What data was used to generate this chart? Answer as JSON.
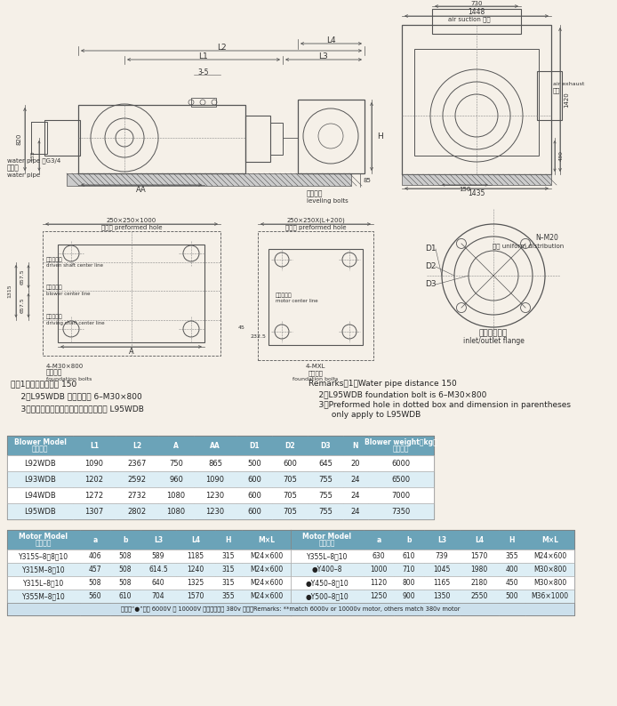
{
  "bg_color": "#f5f0e8",
  "line_color": "#555555",
  "table1_header_bg": "#6ba3b8",
  "table2_header_bg": "#6ba3b8",
  "table_header_text": "#ffffff",
  "notes_cn": [
    "注：1、输水管间距为 150",
    "    2、L95WDB 地脚螺栓为 6–M30×800",
    "    3、虚线框内预留孔及括号内尺寸仅用于 L95WDB"
  ],
  "notes_en": [
    "Remarks：1、Water pipe distance 150",
    "    2、L95WDB foundation bolt is 6–M30×800",
    "    3、Preformed hole in dotted box and dimension in parentheses",
    "         only apply to L95WDB"
  ],
  "blower_table_headers": [
    "风机型号\nBlower Model",
    "L1",
    "L2",
    "A",
    "AA",
    "D1",
    "D2",
    "D3",
    "N",
    "主机重量\nBlower weight（kg）"
  ],
  "blower_table_data": [
    [
      "L92WDB",
      "1090",
      "2367",
      "750",
      "865",
      "500",
      "600",
      "645",
      "20",
      "6000"
    ],
    [
      "L93WDB",
      "1202",
      "2592",
      "960",
      "1090",
      "600",
      "705",
      "755",
      "24",
      "6500"
    ],
    [
      "L94WDB",
      "1272",
      "2732",
      "1080",
      "1230",
      "600",
      "705",
      "755",
      "24",
      "7000"
    ],
    [
      "L95WDB",
      "1307",
      "2802",
      "1080",
      "1230",
      "600",
      "705",
      "755",
      "24",
      "7350"
    ]
  ],
  "motor_table_headers": [
    "电机型号\nMotor Model",
    "a",
    "b",
    "L3",
    "L4",
    "H",
    "M×L"
  ],
  "motor_table_data_left": [
    [
      "Y315S–8、8、10",
      "406",
      "508",
      "589",
      "1185",
      "315",
      "M24×600"
    ],
    [
      "Y315M–8、10",
      "457",
      "508",
      "614.5",
      "1240",
      "315",
      "M24×600"
    ],
    [
      "Y315L–8、10",
      "508",
      "508",
      "640",
      "1325",
      "315",
      "M24×600"
    ],
    [
      "Y355M–8、10",
      "560",
      "610",
      "704",
      "1570",
      "355",
      "M24×600"
    ]
  ],
  "motor_table_data_right": [
    [
      "Y355L–8、10",
      "630",
      "610",
      "739",
      "1570",
      "355",
      "M24×600"
    ],
    [
      "●Y400–8",
      "1000",
      "710",
      "1045",
      "1980",
      "400",
      "M30×800"
    ],
    [
      "●Y450–8、10",
      "1120",
      "800",
      "1165",
      "2180",
      "450",
      "M30×800"
    ],
    [
      "●Y500–8、10",
      "1250",
      "900",
      "1350",
      "2550",
      "500",
      "M36×1000"
    ]
  ],
  "motor_footer": "注：带“●”适用 6000V 或 10000V 电机。其余为 380v 电机。Remarks: **match 6000v or 10000v motor, others match 380v motor"
}
